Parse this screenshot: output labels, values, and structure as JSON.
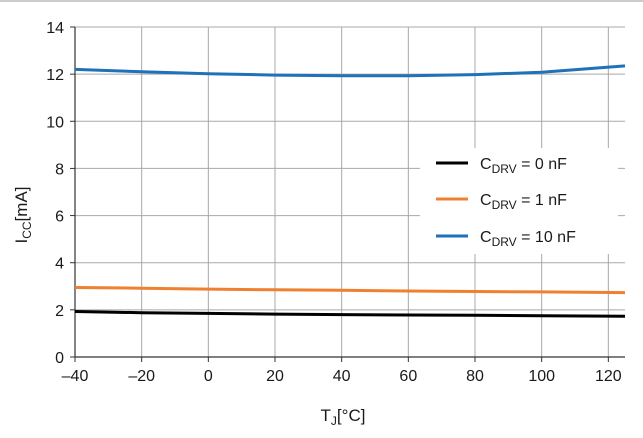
{
  "chart_data": {
    "type": "line",
    "title": "",
    "xlabel": {
      "main": "T",
      "sub": "J",
      "suffix": "[°C]"
    },
    "ylabel": {
      "main": "I",
      "sub": "CC",
      "suffix": "[mA]"
    },
    "xlim": [
      -40,
      125
    ],
    "ylim": [
      0,
      14
    ],
    "x_ticks": [
      -40,
      -20,
      0,
      20,
      40,
      60,
      80,
      100,
      120
    ],
    "x_tick_labels": [
      "–40",
      "–20",
      "0",
      "20",
      "40",
      "60",
      "80",
      "100",
      "120"
    ],
    "y_ticks": [
      0,
      2,
      4,
      6,
      8,
      10,
      12,
      14
    ],
    "y_tick_labels": [
      "0",
      "2",
      "4",
      "6",
      "8",
      "10",
      "12",
      "14"
    ],
    "grid": true,
    "legend_position": "right",
    "series": [
      {
        "name": {
          "main": "C",
          "sub": "DRV",
          "suffix": " = 0 nF"
        },
        "color": "#000000",
        "x": [
          -40,
          -20,
          0,
          20,
          40,
          60,
          80,
          100,
          125
        ],
        "values": [
          1.93,
          1.88,
          1.85,
          1.82,
          1.8,
          1.78,
          1.77,
          1.75,
          1.73
        ]
      },
      {
        "name": {
          "main": "C",
          "sub": "DRV",
          "suffix": " = 1 nF"
        },
        "color": "#f08030",
        "x": [
          -40,
          -20,
          0,
          20,
          40,
          60,
          80,
          100,
          125
        ],
        "values": [
          2.95,
          2.92,
          2.88,
          2.85,
          2.83,
          2.8,
          2.78,
          2.76,
          2.73
        ]
      },
      {
        "name": {
          "main": "C",
          "sub": "DRV",
          "suffix": " = 10 nF"
        },
        "color": "#1f72b8",
        "x": [
          -40,
          -20,
          0,
          20,
          40,
          60,
          80,
          100,
          125
        ],
        "values": [
          12.2,
          12.1,
          12.02,
          11.96,
          11.93,
          11.93,
          11.98,
          12.08,
          12.35
        ]
      }
    ]
  }
}
